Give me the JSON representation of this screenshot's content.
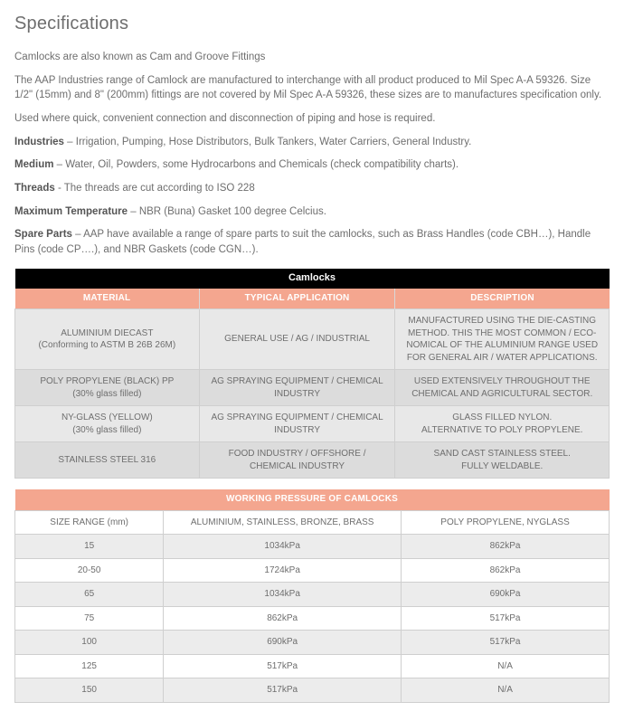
{
  "title": "Specifications",
  "paragraphs": [
    {
      "bold": "",
      "text": "Camlocks are also known as Cam and Groove Fittings"
    },
    {
      "bold": "",
      "text": "The AAP Industries range of Camlock are manufactured to interchange with all product produced to Mil Spec A-A 59326. Size 1/2\" (15mm) and 8\" (200mm) fittings are not covered by Mil Spec A-A 59326, these sizes are to manufactures specification only."
    },
    {
      "bold": "",
      "text": "Used where quick, convenient connection and disconnection of piping and hose is required."
    },
    {
      "bold": "Industries",
      "text": " – Irrigation, Pumping, Hose Distributors, Bulk Tankers, Water Carriers, General Industry."
    },
    {
      "bold": "Medium",
      "text": " – Water, Oil, Powders, some Hydrocarbons and Chemicals (check compatibility charts)."
    },
    {
      "bold": "Threads",
      "text": " - The threads are cut according to ISO 228"
    },
    {
      "bold": "Maximum Temperature",
      "text": " – NBR (Buna) Gasket 100 degree Celcius."
    },
    {
      "bold": "Spare Parts",
      "text": " – AAP have available a range of spare parts to suit the camlocks, such as Brass Handles (code CBH…), Handle Pins (code CP….), and NBR Gaskets (code CGN…)."
    }
  ],
  "camlocks_table": {
    "type": "table",
    "title": "Camlocks",
    "columns": [
      "MATERIAL",
      "TYPICAL APPLICATION",
      "DESCRIPTION"
    ],
    "header_bg": "#f4a68f",
    "header_fg": "#ffffff",
    "title_bg": "#000000",
    "title_fg": "#ffffff",
    "row_bg_odd": "#e8e8e8",
    "row_bg_even": "#dcdcdc",
    "border_color": "#cfcfcf",
    "fontsize": 10,
    "rows": [
      [
        "ALUMINIUM DIECAST\n(Conforming to ASTM B 26B 26M)",
        "GENERAL USE / AG / INDUSTRIAL",
        "MANUFACTURED USING THE DIE-CASTING METHOD. THIS THE MOST COMMON / ECO-NOMICAL OF THE ALUMINIUM RANGE USED FOR GENERAL AIR / WATER APPLICATIONS."
      ],
      [
        "POLY PROPYLENE (BLACK) PP\n(30% glass filled)",
        "AG SPRAYING EQUIPMENT / CHEMICAL INDUSTRY",
        "USED EXTENSIVELY THROUGHOUT THE CHEMICAL AND AGRICULTURAL SECTOR."
      ],
      [
        "NY-GLASS (YELLOW)\n(30% glass filled)",
        "AG SPRAYING EQUIPMENT / CHEMICAL INDUSTRY",
        "GLASS FILLED NYLON.\nALTERNATIVE TO POLY PROPYLENE."
      ],
      [
        "STAINLESS STEEL 316",
        "FOOD INDUSTRY / OFFSHORE / CHEMICAL INDUSTRY",
        "SAND CAST STAINLESS STEEL.\nFULLY WELDABLE."
      ]
    ]
  },
  "pressure_table": {
    "type": "table",
    "title": "WORKING PRESSURE OF CAMLOCKS",
    "columns": [
      "SIZE RANGE (mm)",
      "ALUMINIUM, STAINLESS, BRONZE, BRASS",
      "POLY PROPYLENE,  NYGLASS"
    ],
    "header_bg": "#f4a68f",
    "header_fg": "#ffffff",
    "row_bg_odd": "#ffffff",
    "row_bg_even": "#ececec",
    "border_color": "#cfcfcf",
    "fontsize": 10,
    "rows": [
      [
        "15",
        "1034kPa",
        "862kPa"
      ],
      [
        "20-50",
        "1724kPa",
        "862kPa"
      ],
      [
        "65",
        "1034kPa",
        "690kPa"
      ],
      [
        "75",
        "862kPa",
        "517kPa"
      ],
      [
        "100",
        "690kPa",
        "517kPa"
      ],
      [
        "125",
        "517kPa",
        "N/A"
      ],
      [
        "150",
        "517kPa",
        "N/A"
      ]
    ]
  }
}
